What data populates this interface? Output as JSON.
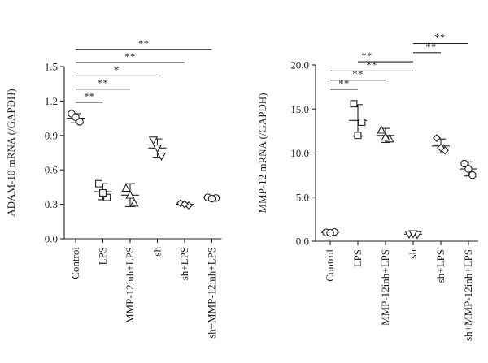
{
  "chart_data": [
    {
      "type": "scatter",
      "ylabel": "ADAM-10 mRNA (/GAPDH)",
      "ylim": [
        0,
        1.5
      ],
      "yticks": [
        "0.0",
        "0.3",
        "0.6",
        "0.9",
        "1.2",
        "1.5"
      ],
      "categories": [
        "Control",
        "LPS",
        "MMP-12inh+LPS",
        "sh",
        "sh+LPS",
        "sh+MMP-12inh+LPS"
      ],
      "markers": [
        "circle",
        "square",
        "triangle-up",
        "triangle-down",
        "diamond",
        "circle"
      ],
      "groups": [
        {
          "points": [
            1.09,
            1.02,
            1.06
          ],
          "mean": 1.05,
          "sd": 0.04
        },
        {
          "points": [
            0.48,
            0.36,
            0.4
          ],
          "mean": 0.41,
          "sd": 0.07
        },
        {
          "points": [
            0.44,
            0.31,
            0.38
          ],
          "mean": 0.38,
          "sd": 0.1
        },
        {
          "points": [
            0.86,
            0.72,
            0.79
          ],
          "mean": 0.79,
          "sd": 0.08
        },
        {
          "points": [
            0.31,
            0.29,
            0.3
          ],
          "mean": 0.3,
          "sd": 0.01
        },
        {
          "points": [
            0.36,
            0.355,
            0.35
          ],
          "mean": 0.36,
          "sd": 0.01
        }
      ],
      "significance": [
        {
          "from": 0,
          "to": 1,
          "label": "**"
        },
        {
          "from": 0,
          "to": 2,
          "label": "**"
        },
        {
          "from": 0,
          "to": 3,
          "label": "*"
        },
        {
          "from": 0,
          "to": 4,
          "label": "**"
        },
        {
          "from": 0,
          "to": 5,
          "label": "**"
        }
      ]
    },
    {
      "type": "scatter",
      "ylabel": "MMP-12 mRNA (/GAPDH)",
      "ylim": [
        0,
        20
      ],
      "yticks": [
        "0.0",
        "5.0",
        "10.0",
        "15.0",
        "20.0"
      ],
      "categories": [
        "Control",
        "LPS",
        "MMP-12inh+LPS",
        "sh",
        "sh+LPS",
        "sh+MMP-12inh+LPS"
      ],
      "markers": [
        "circle",
        "square",
        "triangle-up",
        "triangle-down",
        "diamond",
        "circle"
      ],
      "groups": [
        {
          "points": [
            1.0,
            1.05,
            0.95
          ],
          "mean": 1.0,
          "sd": 0.1
        },
        {
          "points": [
            15.6,
            13.5,
            12.0
          ],
          "mean": 13.7,
          "sd": 1.8
        },
        {
          "points": [
            12.6,
            11.6,
            11.8
          ],
          "mean": 12.0,
          "sd": 0.8
        },
        {
          "points": [
            0.8,
            0.75,
            0.85
          ],
          "mean": 0.8,
          "sd": 0.15
        },
        {
          "points": [
            11.7,
            10.3,
            10.6
          ],
          "mean": 10.8,
          "sd": 0.8
        },
        {
          "points": [
            8.8,
            7.5,
            8.2
          ],
          "mean": 8.2,
          "sd": 0.8
        }
      ],
      "significance": [
        {
          "from": 0,
          "to": 1,
          "label": "**"
        },
        {
          "from": 0,
          "to": 2,
          "label": "**"
        },
        {
          "from": 0,
          "to": 3,
          "label": "**"
        },
        {
          "from": 3,
          "to": 1,
          "label": "**"
        },
        {
          "from": 3,
          "to": 4,
          "label": "**"
        },
        {
          "from": 3,
          "to": 5,
          "label": "**"
        }
      ]
    }
  ]
}
